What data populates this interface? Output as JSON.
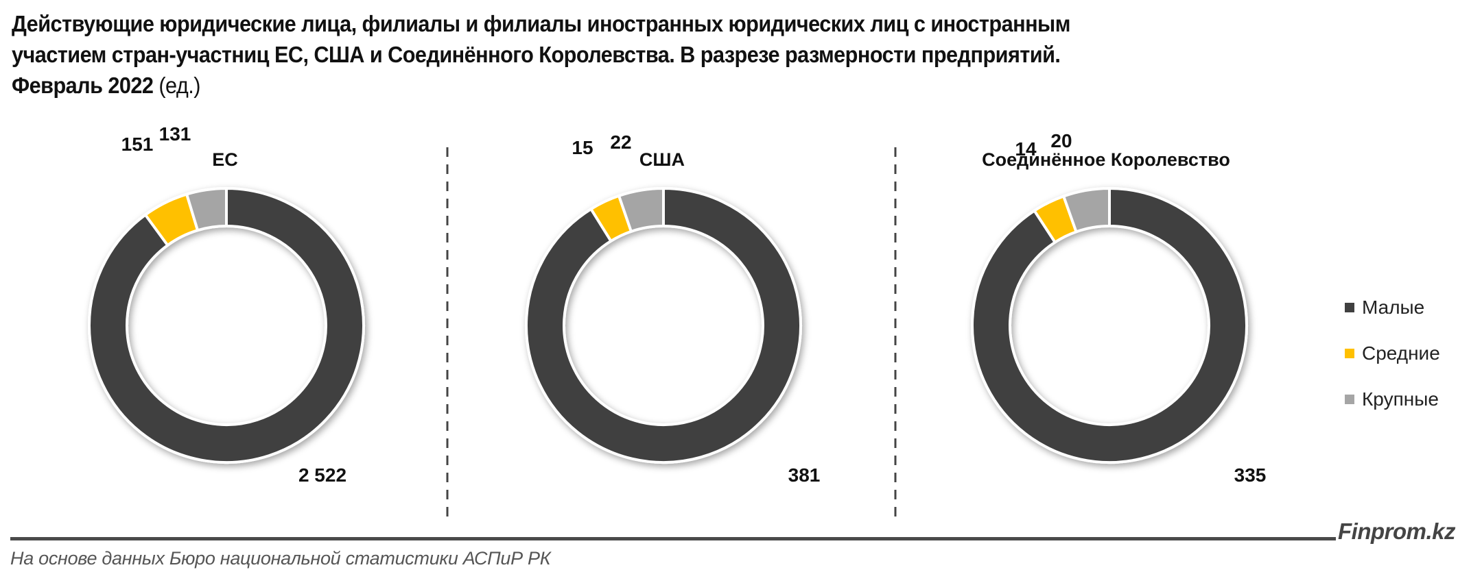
{
  "title": {
    "line1": "Действующие юридические лица, филиалы и филиалы иностранных юридических лиц с иностранным",
    "line2": "участием стран-участниц ЕС, США и Соединённого Королевства. В разрезе размерности предприятий.",
    "line3": "Февраль 2022",
    "unit": " (ед.)"
  },
  "legend": {
    "items": [
      {
        "label": "Малые",
        "color": "#404040"
      },
      {
        "label": "Средние",
        "color": "#FFC000"
      },
      {
        "label": "Крупные",
        "color": "#A5A5A5"
      }
    ]
  },
  "panels": [
    {
      "title": "ЕС",
      "small_label": "2 522",
      "medium_label": "151",
      "large_label": "131"
    },
    {
      "title": "США",
      "small_label": "381",
      "medium_label": "15",
      "large_label": "22"
    },
    {
      "title": "Соединённое Королевство",
      "small_label": "335",
      "medium_label": "14",
      "large_label": "20"
    }
  ],
  "footer": {
    "brand": "Finprom.kz",
    "source": "На основе данных Бюро национальной статистики АСПиР РК"
  },
  "chart_data": [
    {
      "type": "pie",
      "subtype": "donut",
      "title": "ЕС",
      "categories": [
        "Малые",
        "Средние",
        "Крупные"
      ],
      "values": [
        2522,
        151,
        131
      ],
      "colors": [
        "#404040",
        "#FFC000",
        "#A5A5A5"
      ]
    },
    {
      "type": "pie",
      "subtype": "donut",
      "title": "США",
      "categories": [
        "Малые",
        "Средние",
        "Крупные"
      ],
      "values": [
        381,
        15,
        22
      ],
      "colors": [
        "#404040",
        "#FFC000",
        "#A5A5A5"
      ]
    },
    {
      "type": "pie",
      "subtype": "donut",
      "title": "Соединённое Королевство",
      "categories": [
        "Малые",
        "Средние",
        "Крупные"
      ],
      "values": [
        335,
        14,
        20
      ],
      "colors": [
        "#404040",
        "#FFC000",
        "#A5A5A5"
      ]
    }
  ]
}
